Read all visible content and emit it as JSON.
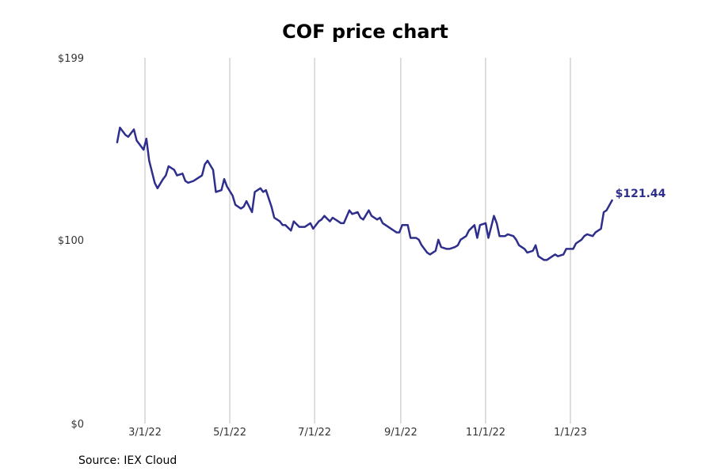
{
  "chart_data": {
    "type": "line",
    "title": "COF price chart",
    "source": "Source: IEX Cloud",
    "ylim": [
      0,
      199
    ],
    "yticks": [
      {
        "value": 0,
        "label": "$0"
      },
      {
        "value": 100,
        "label": "$100"
      },
      {
        "value": 199,
        "label": "$199"
      }
    ],
    "xticks": [
      {
        "date": "2022-03-01",
        "label": "3/1/22"
      },
      {
        "date": "2022-05-01",
        "label": "5/1/22"
      },
      {
        "date": "2022-07-01",
        "label": "7/1/22"
      },
      {
        "date": "2022-09-01",
        "label": "9/1/22"
      },
      {
        "date": "2022-11-01",
        "label": "11/1/22"
      },
      {
        "date": "2023-01-01",
        "label": "1/1/23"
      }
    ],
    "grid": "vertical",
    "series_color": "#2e2e8c",
    "end_label": "$121.44",
    "series": [
      {
        "x": [
          "2022-02-09",
          "2022-02-11",
          "2022-02-15",
          "2022-02-17",
          "2022-02-21",
          "2022-02-23",
          "2022-02-25",
          "2022-02-28",
          "2022-03-02",
          "2022-03-04",
          "2022-03-08",
          "2022-03-10",
          "2022-03-14",
          "2022-03-16",
          "2022-03-18",
          "2022-03-22",
          "2022-03-24",
          "2022-03-28",
          "2022-03-30",
          "2022-04-01",
          "2022-04-05",
          "2022-04-07",
          "2022-04-11",
          "2022-04-13",
          "2022-04-15",
          "2022-04-19",
          "2022-04-21",
          "2022-04-25",
          "2022-04-27",
          "2022-04-29",
          "2022-05-03",
          "2022-05-05",
          "2022-05-09",
          "2022-05-11",
          "2022-05-13",
          "2022-05-17",
          "2022-05-19",
          "2022-05-23",
          "2022-05-25",
          "2022-05-27",
          "2022-05-31",
          "2022-06-02",
          "2022-06-06",
          "2022-06-08",
          "2022-06-10",
          "2022-06-14",
          "2022-06-16",
          "2022-06-20",
          "2022-06-22",
          "2022-06-24",
          "2022-06-28",
          "2022-06-30",
          "2022-07-04",
          "2022-07-06",
          "2022-07-08",
          "2022-07-12",
          "2022-07-14",
          "2022-07-18",
          "2022-07-20",
          "2022-07-22",
          "2022-07-26",
          "2022-07-28",
          "2022-08-01",
          "2022-08-03",
          "2022-08-05",
          "2022-08-09",
          "2022-08-11",
          "2022-08-15",
          "2022-08-17",
          "2022-08-19",
          "2022-08-23",
          "2022-08-25",
          "2022-08-29",
          "2022-08-31",
          "2022-09-02",
          "2022-09-06",
          "2022-09-08",
          "2022-09-12",
          "2022-09-14",
          "2022-09-16",
          "2022-09-20",
          "2022-09-22",
          "2022-09-26",
          "2022-09-28",
          "2022-09-30",
          "2022-10-04",
          "2022-10-06",
          "2022-10-10",
          "2022-10-12",
          "2022-10-14",
          "2022-10-18",
          "2022-10-20",
          "2022-10-24",
          "2022-10-26",
          "2022-10-28",
          "2022-11-01",
          "2022-11-03",
          "2022-11-07",
          "2022-11-09",
          "2022-11-11",
          "2022-11-15",
          "2022-11-17",
          "2022-11-21",
          "2022-11-23",
          "2022-11-25",
          "2022-11-29",
          "2022-12-01",
          "2022-12-05",
          "2022-12-07",
          "2022-12-09",
          "2022-12-13",
          "2022-12-15",
          "2022-12-19",
          "2022-12-21",
          "2022-12-23",
          "2022-12-27",
          "2022-12-29",
          "2023-01-03",
          "2023-01-05",
          "2023-01-09",
          "2023-01-11",
          "2023-01-13",
          "2023-01-17",
          "2023-01-19",
          "2023-01-23",
          "2023-01-25",
          "2023-01-27",
          "2023-01-31"
        ],
        "y": [
          153,
          161,
          157,
          156,
          160,
          154,
          152,
          149,
          155,
          143,
          131,
          128,
          133,
          135,
          140,
          138,
          135,
          136,
          132,
          131,
          132,
          133,
          135,
          141,
          143,
          138,
          126,
          127,
          133,
          129,
          124,
          119,
          117,
          118,
          121,
          115,
          126,
          128,
          126,
          127,
          118,
          112,
          110,
          108,
          108,
          105,
          110,
          107,
          107,
          107,
          109,
          106,
          110,
          111,
          113,
          110,
          112,
          110,
          109,
          109,
          116,
          114,
          115,
          112,
          111,
          116,
          113,
          111,
          112,
          109,
          107,
          106,
          104,
          104,
          108,
          108,
          101,
          101,
          100,
          97,
          93,
          92,
          94,
          100,
          96,
          95,
          95,
          96,
          97,
          100,
          102,
          105,
          108,
          101,
          108,
          109,
          101,
          113,
          109,
          102,
          102,
          103,
          102,
          100,
          97,
          95,
          93,
          94,
          97,
          91,
          89,
          89,
          91,
          92,
          91,
          92,
          95,
          95,
          98,
          100,
          102,
          103,
          102,
          104,
          106,
          115,
          116,
          121.44
        ]
      }
    ]
  }
}
